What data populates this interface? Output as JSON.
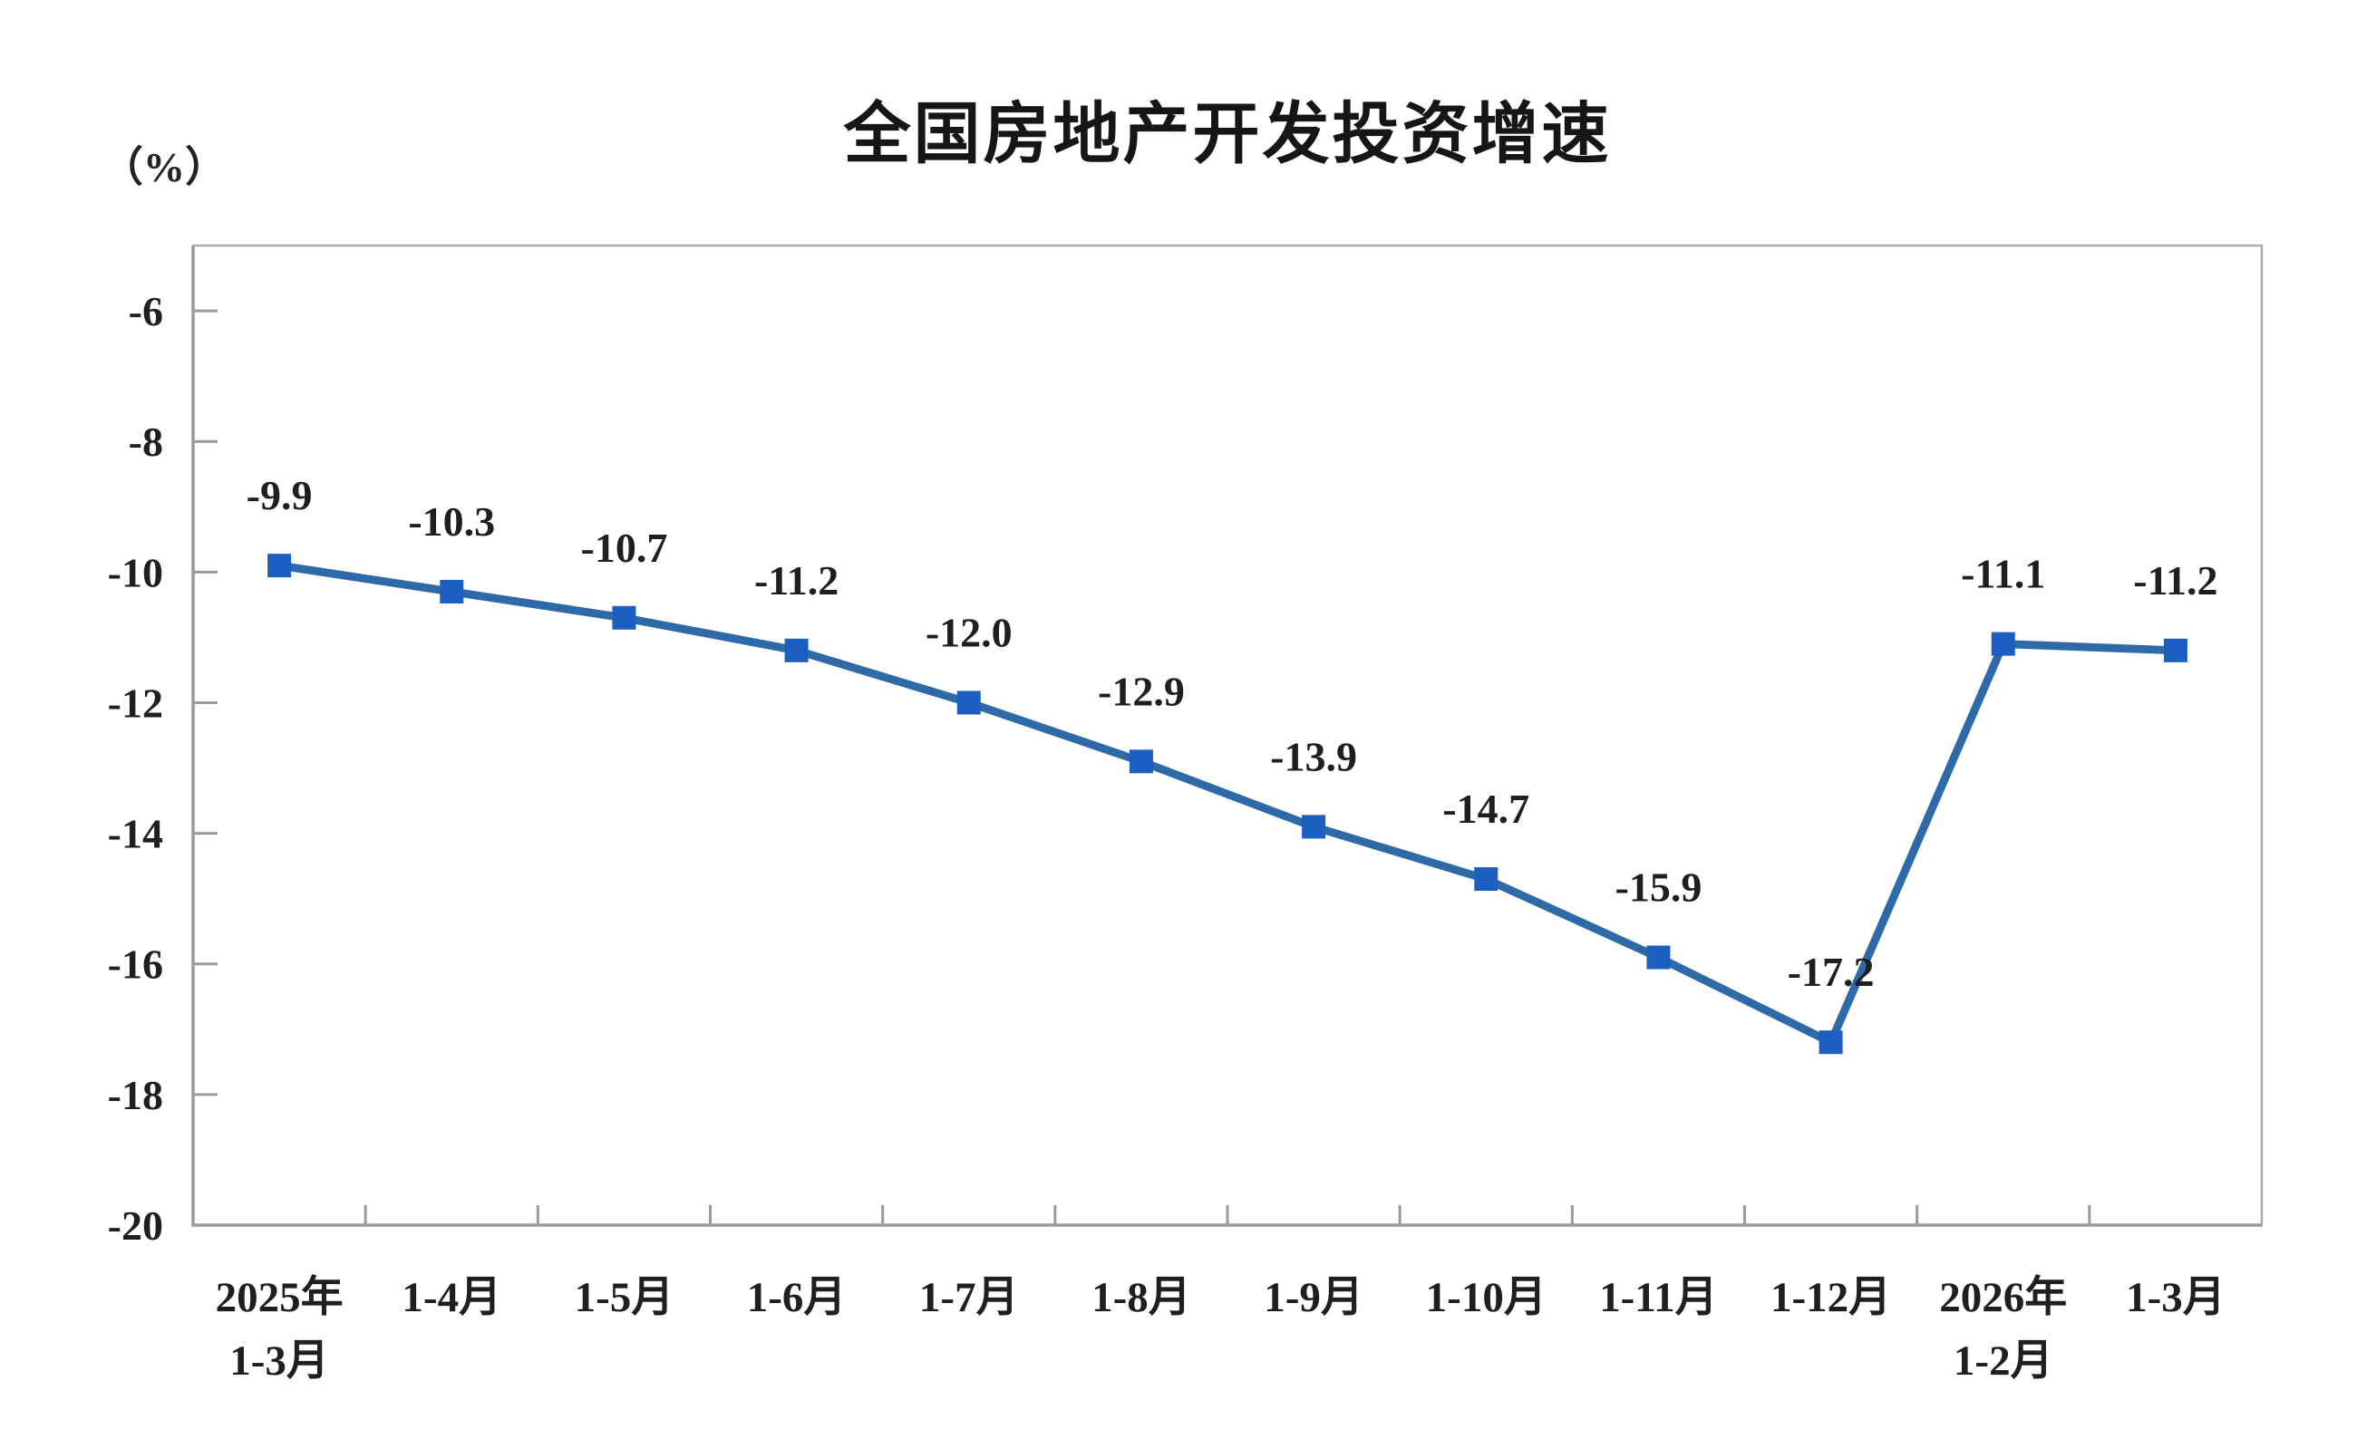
{
  "chart_data": {
    "type": "line",
    "title": "全国房地产开发投资增速",
    "unit_label": "（%）",
    "categories": [
      "2025年\n1-3月",
      "1-4月",
      "1-5月",
      "1-6月",
      "1-7月",
      "1-8月",
      "1-9月",
      "1-10月",
      "1-11月",
      "1-12月",
      "2026年\n1-2月",
      "1-3月"
    ],
    "values": [
      -9.9,
      -10.3,
      -10.7,
      -11.2,
      -12.0,
      -12.9,
      -13.9,
      -14.7,
      -15.9,
      -17.2,
      -11.1,
      -11.2
    ],
    "point_labels": [
      "-9.9",
      "-10.3",
      "-10.7",
      "-11.2",
      "-12.0",
      "-12.9",
      "-13.9",
      "-14.7",
      "-15.9",
      "-17.2",
      "-11.1",
      "-11.2"
    ],
    "ylim": [
      -20,
      -5
    ],
    "yticks": [
      -6,
      -8,
      -10,
      -12,
      -14,
      -16,
      -18,
      -20
    ],
    "ytick_labels": [
      "-6",
      "-8",
      "-10",
      "-12",
      "-14",
      "-16",
      "-18",
      "-20"
    ],
    "grid": "off",
    "legend": "none",
    "colors": {
      "line": "#2e6aa8",
      "marker": "#1d5ec2",
      "axis": "#9a9a9a",
      "border": "#ababab",
      "text": "#1f1f1f"
    }
  }
}
